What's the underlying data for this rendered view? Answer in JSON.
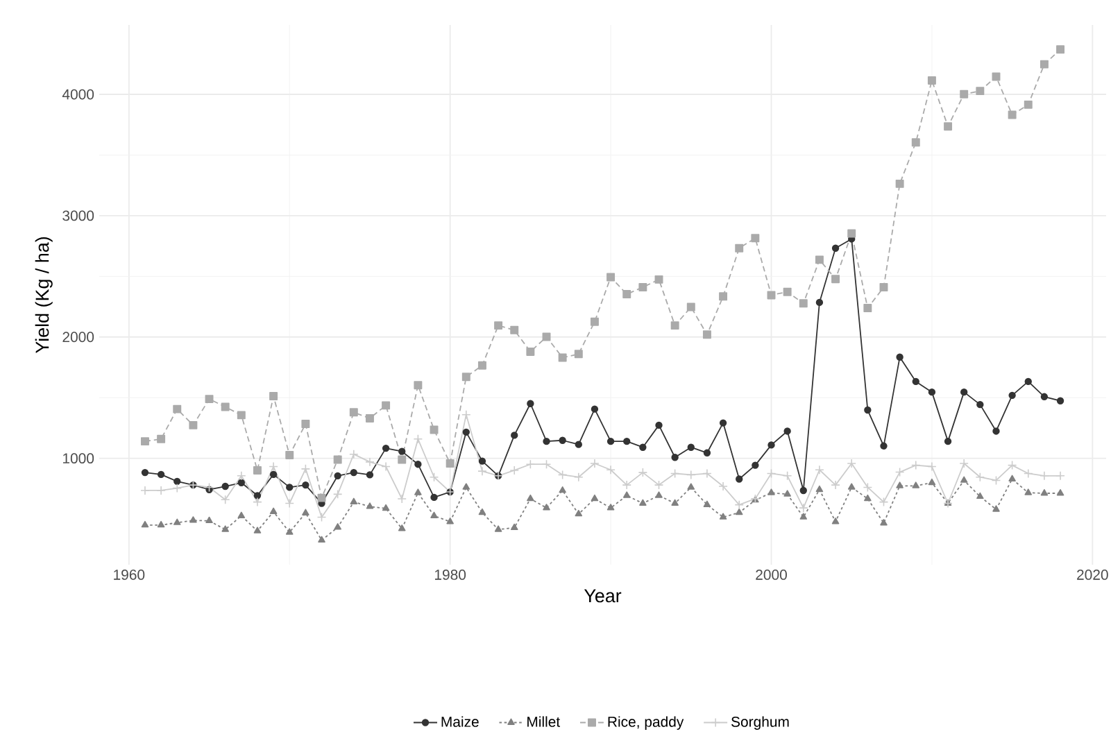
{
  "chart_data": {
    "type": "line",
    "xlabel": "Year",
    "ylabel": "Yield (Kg / ha)",
    "x": [
      1961,
      1962,
      1963,
      1964,
      1965,
      1966,
      1967,
      1968,
      1969,
      1970,
      1971,
      1972,
      1973,
      1974,
      1975,
      1976,
      1977,
      1978,
      1979,
      1980,
      1981,
      1982,
      1983,
      1984,
      1985,
      1986,
      1987,
      1988,
      1989,
      1990,
      1991,
      1992,
      1993,
      1994,
      1995,
      1996,
      1997,
      1998,
      1999,
      2000,
      2001,
      2002,
      2003,
      2004,
      2005,
      2006,
      2007,
      2008,
      2009,
      2010,
      2011,
      2012,
      2013,
      2014,
      2015,
      2016,
      2017,
      2018
    ],
    "series": [
      {
        "name": "Maize",
        "color": "#333333",
        "marker": "circle",
        "line_style": "solid",
        "values": [
          883,
          867,
          810,
          780,
          742,
          769,
          799,
          693,
          867,
          761,
          780,
          629,
          856,
          883,
          864,
          1083,
          1057,
          951,
          678,
          723,
          1216,
          977,
          856,
          1190,
          1451,
          1140,
          1148,
          1114,
          1406,
          1140,
          1140,
          1091,
          1273,
          1008,
          1091,
          1045,
          1292,
          829,
          943,
          1110,
          1224,
          735,
          2285,
          2732,
          2808,
          1398,
          1102,
          1834,
          1633,
          1546,
          1140,
          1546,
          1443,
          1224,
          1519,
          1633,
          1508,
          1474
        ]
      },
      {
        "name": "Millet",
        "color": "#808080",
        "marker": "triangle",
        "line_style": "dotted",
        "values": [
          450,
          450,
          469,
          488,
          485,
          413,
          526,
          401,
          560,
          390,
          549,
          325,
          431,
          640,
          602,
          587,
          420,
          716,
          526,
          477,
          761,
          553,
          413,
          428,
          667,
          591,
          735,
          541,
          667,
          591,
          693,
          629,
          693,
          629,
          761,
          617,
          515,
          553,
          655,
          716,
          704,
          515,
          742,
          477,
          761,
          667,
          466,
          773,
          773,
          799,
          629,
          818,
          685,
          579,
          829,
          716,
          712,
          712
        ]
      },
      {
        "name": "Rice, paddy",
        "color": "#aaaaaa",
        "marker": "square",
        "line_style": "dashed",
        "values": [
          1140,
          1159,
          1406,
          1273,
          1489,
          1424,
          1356,
          901,
          1512,
          1027,
          1284,
          674,
          989,
          1379,
          1330,
          1436,
          989,
          1603,
          1235,
          958,
          1671,
          1766,
          2095,
          2057,
          1879,
          2001,
          1830,
          1860,
          2126,
          2493,
          2353,
          2410,
          2474,
          2095,
          2247,
          2020,
          2334,
          2732,
          2815,
          2345,
          2372,
          2277,
          2637,
          2478,
          2853,
          2239,
          2410,
          3263,
          3604,
          4115,
          3736,
          4002,
          4028,
          4146,
          3831,
          3915,
          4248,
          4370
        ]
      },
      {
        "name": "Sorghum",
        "color": "#cccccc",
        "marker": "cross",
        "line_style": "solid",
        "values": [
          735,
          735,
          754,
          780,
          761,
          659,
          856,
          640,
          932,
          629,
          913,
          515,
          704,
          1034,
          970,
          932,
          666,
          1159,
          845,
          723,
          1360,
          894,
          856,
          901,
          951,
          951,
          864,
          845,
          958,
          905,
          780,
          883,
          780,
          875,
          864,
          875,
          769,
          617,
          667,
          875,
          856,
          591,
          905,
          780,
          958,
          761,
          640,
          886,
          943,
          932,
          629,
          958,
          845,
          818,
          943,
          875,
          856,
          856
        ]
      }
    ],
    "xlim": [
      1958.15,
      2020.85
    ],
    "ylim": [
      123,
      4572
    ],
    "xticks": [
      1960,
      1980,
      2000,
      2020
    ],
    "yticks": [
      1000,
      2000,
      3000,
      4000
    ],
    "grid": true,
    "legend": "bottom"
  }
}
